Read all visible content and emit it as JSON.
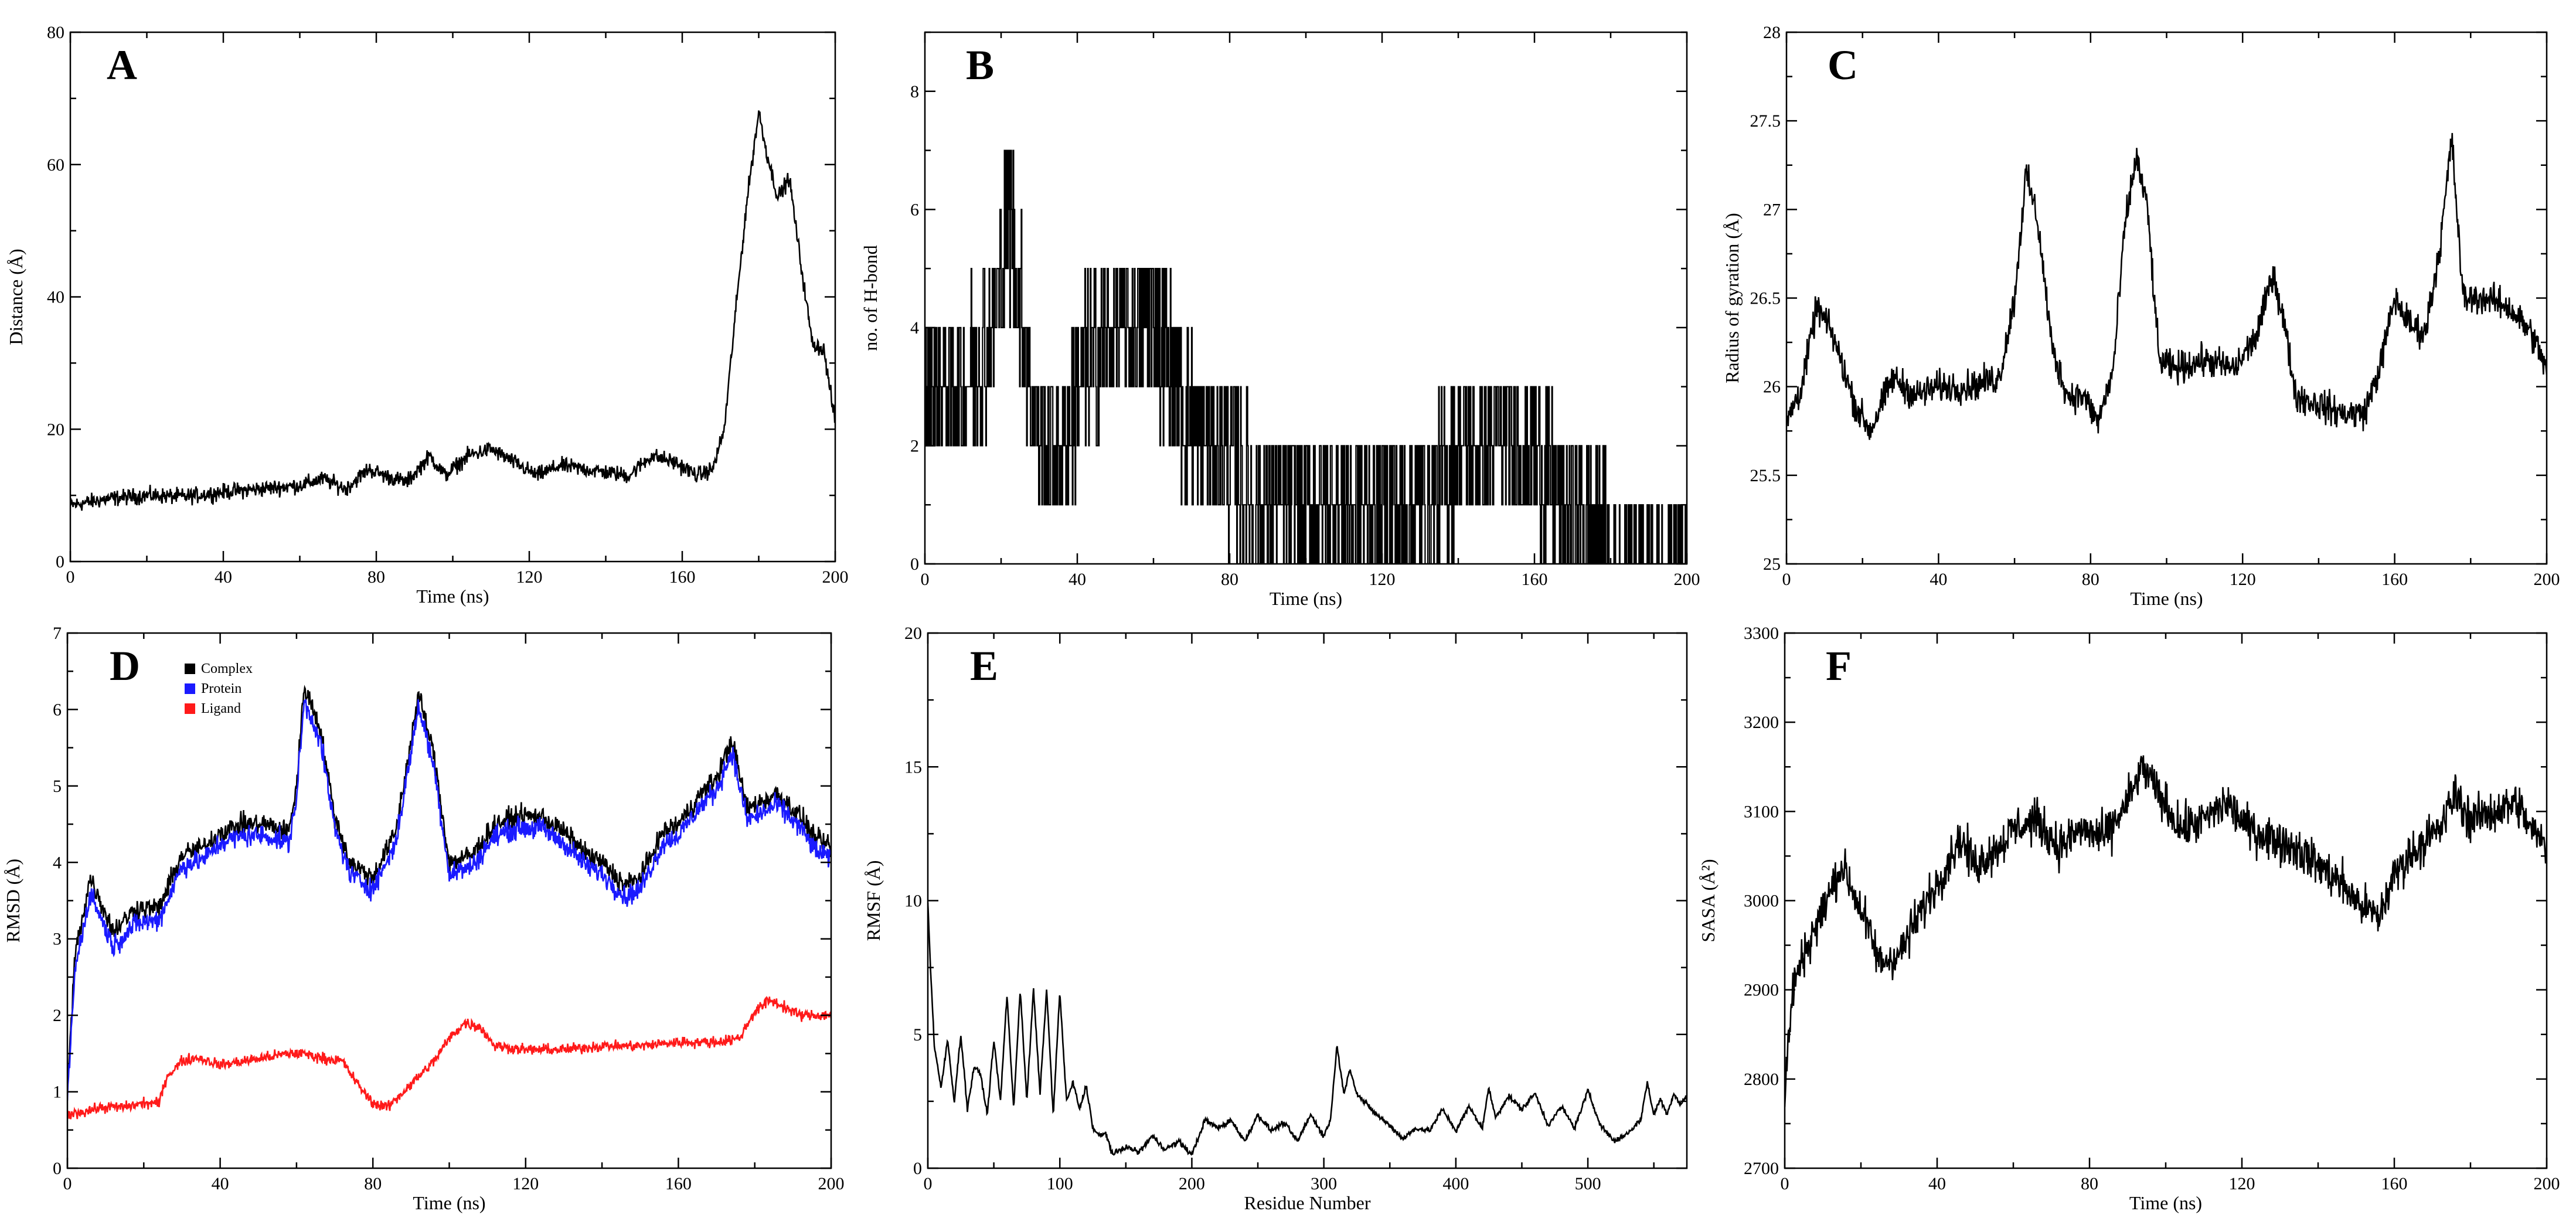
{
  "chart_data": [
    {
      "panel": "A",
      "type": "line",
      "xlabel": "Time (ns)",
      "ylabel": "Distance (Å)",
      "xlim": [
        0,
        200
      ],
      "ylim": [
        0,
        80
      ],
      "xticks": [
        0,
        40,
        80,
        120,
        160,
        200
      ],
      "yticks": [
        0,
        20,
        40,
        60,
        80
      ],
      "series": [
        {
          "name": "Distance",
          "color": "#000000",
          "x": [
            0,
            10,
            20,
            30,
            40,
            50,
            60,
            66,
            72,
            78,
            82,
            88,
            94,
            98,
            104,
            110,
            116,
            122,
            128,
            134,
            140,
            146,
            152,
            158,
            164,
            168,
            171,
            174,
            177,
            180,
            182,
            185,
            188,
            191,
            194,
            197,
            200
          ],
          "y": [
            8.5,
            9.5,
            10,
            9.8,
            10.5,
            11,
            11.5,
            12.5,
            11,
            14,
            13,
            12,
            16,
            13,
            16,
            17,
            15,
            13,
            14.5,
            14,
            13.5,
            13,
            16,
            15,
            13,
            14,
            20,
            38,
            55,
            68,
            62,
            55,
            58,
            45,
            33,
            32,
            21
          ],
          "noise": 1.2
        }
      ]
    },
    {
      "panel": "B",
      "type": "line",
      "xlabel": "Time (ns)",
      "ylabel": "no. of H-bond",
      "xlim": [
        0,
        200
      ],
      "ylim": [
        0,
        9
      ],
      "xticks": [
        0,
        40,
        80,
        120,
        160,
        200
      ],
      "yticks": [
        0,
        2,
        4,
        6,
        8
      ],
      "series": [
        {
          "name": "H-bond",
          "color": "#000000",
          "x": [
            0,
            10,
            18,
            22,
            26,
            30,
            36,
            40,
            50,
            56,
            60,
            66,
            72,
            78,
            86,
            96,
            106,
            120,
            134,
            140,
            150,
            160,
            166,
            172,
            180,
            190,
            200
          ],
          "y": [
            3,
            3,
            4,
            6,
            4,
            2,
            2,
            3,
            4,
            4,
            4,
            3,
            2,
            2,
            1,
            1,
            1,
            1,
            1,
            2,
            2,
            2,
            1,
            1,
            0,
            0,
            0
          ],
          "noise": 1.5,
          "discrete": true
        }
      ]
    },
    {
      "panel": "C",
      "type": "line",
      "xlabel": "Time (ns)",
      "ylabel": "Radius of gyration (Å)",
      "xlim": [
        0,
        200
      ],
      "ylim": [
        25,
        28
      ],
      "xticks": [
        0,
        40,
        80,
        120,
        160,
        200
      ],
      "yticks": [
        25,
        25.5,
        26,
        26.5,
        27,
        27.5,
        28
      ],
      "series": [
        {
          "name": "Rg",
          "color": "#000000",
          "x": [
            0,
            4,
            8,
            12,
            18,
            22,
            28,
            34,
            40,
            48,
            56,
            60,
            63,
            66,
            70,
            74,
            78,
            82,
            86,
            89,
            92,
            95,
            98,
            102,
            110,
            118,
            124,
            128,
            131,
            134,
            140,
            146,
            152,
            156,
            160,
            164,
            168,
            172,
            175,
            178,
            184,
            190,
            196,
            200
          ],
          "y": [
            25.8,
            26,
            26.45,
            26.3,
            25.9,
            25.75,
            26.05,
            25.95,
            26,
            26,
            26.05,
            26.5,
            27.2,
            26.95,
            26.2,
            25.95,
            25.95,
            25.8,
            26.1,
            26.9,
            27.3,
            27,
            26.15,
            26.1,
            26.15,
            26.1,
            26.3,
            26.65,
            26.35,
            25.95,
            25.9,
            25.85,
            25.85,
            26.1,
            26.5,
            26.35,
            26.3,
            26.8,
            27.4,
            26.5,
            26.5,
            26.45,
            26.3,
            26.1
          ],
          "noise": 0.09
        }
      ]
    },
    {
      "panel": "D",
      "type": "line",
      "xlabel": "Time (ns)",
      "ylabel": "RMSD (Å)",
      "xlim": [
        0,
        200
      ],
      "ylim": [
        0,
        7
      ],
      "xticks": [
        0,
        40,
        80,
        120,
        160,
        200
      ],
      "yticks": [
        0,
        1,
        2,
        3,
        4,
        5,
        6,
        7
      ],
      "legend": [
        "Complex",
        "Protein",
        "Ligand"
      ],
      "series": [
        {
          "name": "Complex",
          "color": "#000000",
          "x": [
            0,
            2,
            6,
            12,
            18,
            24,
            30,
            36,
            40,
            46,
            52,
            58,
            60,
            62,
            66,
            70,
            74,
            80,
            86,
            90,
            92,
            96,
            100,
            106,
            112,
            118,
            124,
            130,
            136,
            140,
            146,
            150,
            156,
            160,
            166,
            170,
            174,
            178,
            182,
            186,
            192,
            196,
            200
          ],
          "y": [
            1,
            2.8,
            3.8,
            3.1,
            3.4,
            3.4,
            4.1,
            4.2,
            4.4,
            4.5,
            4.5,
            4.4,
            5,
            6.3,
            5.8,
            4.6,
            4,
            3.8,
            4.4,
            5.6,
            6.2,
            5.4,
            4,
            4.1,
            4.5,
            4.6,
            4.6,
            4.4,
            4.1,
            4,
            3.7,
            3.8,
            4.4,
            4.5,
            4.9,
            5.1,
            5.6,
            4.7,
            4.8,
            4.9,
            4.6,
            4.3,
            4.2
          ],
          "noise": 0.14
        },
        {
          "name": "Protein",
          "color": "#1a1aff",
          "x": [
            0,
            2,
            6,
            12,
            18,
            24,
            30,
            36,
            40,
            46,
            52,
            58,
            60,
            62,
            66,
            70,
            74,
            80,
            86,
            90,
            92,
            96,
            100,
            106,
            112,
            118,
            124,
            130,
            136,
            140,
            146,
            150,
            156,
            160,
            166,
            170,
            174,
            178,
            182,
            186,
            192,
            196,
            200
          ],
          "y": [
            0.9,
            2.6,
            3.6,
            2.9,
            3.2,
            3.25,
            3.95,
            4.05,
            4.25,
            4.35,
            4.35,
            4.25,
            4.85,
            6.1,
            5.65,
            4.45,
            3.85,
            3.65,
            4.25,
            5.45,
            6.05,
            5.25,
            3.85,
            3.95,
            4.35,
            4.45,
            4.45,
            4.25,
            3.95,
            3.85,
            3.55,
            3.65,
            4.25,
            4.35,
            4.75,
            4.95,
            5.45,
            4.55,
            4.65,
            4.75,
            4.45,
            4.15,
            4.05
          ],
          "noise": 0.14
        },
        {
          "name": "Ligand",
          "color": "#ff1a1a",
          "x": [
            0,
            5,
            10,
            15,
            20,
            24,
            26,
            30,
            34,
            40,
            46,
            52,
            58,
            62,
            66,
            72,
            76,
            80,
            84,
            88,
            92,
            96,
            100,
            104,
            108,
            112,
            120,
            130,
            140,
            150,
            160,
            170,
            176,
            180,
            184,
            188,
            192,
            196,
            200
          ],
          "y": [
            0.7,
            0.75,
            0.8,
            0.8,
            0.85,
            0.85,
            1.2,
            1.4,
            1.45,
            1.35,
            1.4,
            1.45,
            1.5,
            1.5,
            1.45,
            1.4,
            1.1,
            0.85,
            0.8,
            1.0,
            1.2,
            1.4,
            1.7,
            1.9,
            1.85,
            1.6,
            1.55,
            1.55,
            1.6,
            1.6,
            1.65,
            1.65,
            1.7,
            2.05,
            2.2,
            2.1,
            2.0,
            2.0,
            2.0
          ],
          "noise": 0.07
        }
      ]
    },
    {
      "panel": "E",
      "type": "line",
      "xlabel": "Residue Number",
      "ylabel": "RMSF (Å)",
      "xlim": [
        0,
        575
      ],
      "ylim": [
        0,
        20
      ],
      "xticks": [
        0,
        100,
        200,
        300,
        400,
        500
      ],
      "yticks": [
        0,
        5,
        10,
        15,
        20
      ],
      "series": [
        {
          "name": "RMSF",
          "color": "#000000",
          "x": [
            0,
            2,
            5,
            10,
            15,
            20,
            25,
            30,
            35,
            40,
            45,
            50,
            55,
            60,
            65,
            70,
            75,
            80,
            85,
            90,
            95,
            100,
            105,
            110,
            115,
            120,
            125,
            130,
            135,
            140,
            150,
            160,
            170,
            180,
            190,
            200,
            210,
            220,
            230,
            240,
            250,
            260,
            270,
            280,
            290,
            300,
            305,
            310,
            315,
            320,
            325,
            330,
            340,
            350,
            360,
            370,
            380,
            390,
            400,
            410,
            420,
            425,
            430,
            440,
            450,
            460,
            470,
            480,
            490,
            500,
            505,
            510,
            520,
            530,
            540,
            545,
            550,
            555,
            560,
            565,
            570,
            575
          ],
          "y": [
            10,
            7.5,
            4.5,
            3,
            4.8,
            2.5,
            5,
            2.2,
            3.8,
            3.5,
            2,
            4.8,
            2.5,
            6.5,
            2.2,
            6.7,
            2.5,
            6.7,
            2.8,
            6.7,
            2,
            6.6,
            2.5,
            3.2,
            2.2,
            3.1,
            1.5,
            1.2,
            1.3,
            0.5,
            0.8,
            0.6,
            1.2,
            0.7,
            1.0,
            0.5,
            1.8,
            1.5,
            1.8,
            1.0,
            2.0,
            1.4,
            1.7,
            1.0,
            2.0,
            1.2,
            1.8,
            4.6,
            2.8,
            3.7,
            2.8,
            2.5,
            2.0,
            1.6,
            1.1,
            1.5,
            1.4,
            2.2,
            1.4,
            2.3,
            1.5,
            3.0,
            1.9,
            2.7,
            2.2,
            2.8,
            1.6,
            2.3,
            1.5,
            2.9,
            2.2,
            1.6,
            1.0,
            1.3,
            1.8,
            3.2,
            2.0,
            2.6,
            2.0,
            2.8,
            2.4,
            2.7
          ],
          "noise": 0.1
        }
      ]
    },
    {
      "panel": "F",
      "type": "line",
      "xlabel": "Time (ns)",
      "ylabel": "SASA (Å²)",
      "xlim": [
        0,
        200
      ],
      "ylim": [
        2700,
        3300
      ],
      "xticks": [
        0,
        40,
        80,
        120,
        160,
        200
      ],
      "yticks": [
        2700,
        2800,
        2900,
        3000,
        3100,
        3200,
        3300
      ],
      "series": [
        {
          "name": "SASA",
          "color": "#000000",
          "x": [
            0,
            2,
            5,
            10,
            15,
            20,
            25,
            30,
            36,
            40,
            46,
            50,
            56,
            60,
            66,
            72,
            78,
            84,
            90,
            94,
            98,
            104,
            110,
            116,
            122,
            128,
            134,
            140,
            146,
            150,
            156,
            160,
            166,
            172,
            176,
            180,
            186,
            192,
            196,
            200
          ],
          "y": [
            2780,
            2900,
            2940,
            2990,
            3040,
            2990,
            2930,
            2940,
            2990,
            3020,
            3070,
            3040,
            3060,
            3080,
            3090,
            3060,
            3080,
            3070,
            3110,
            3150,
            3120,
            3080,
            3090,
            3110,
            3080,
            3070,
            3060,
            3040,
            3020,
            3000,
            2980,
            3030,
            3060,
            3080,
            3120,
            3090,
            3100,
            3110,
            3080,
            3060
          ],
          "noise": 24
        }
      ]
    }
  ]
}
